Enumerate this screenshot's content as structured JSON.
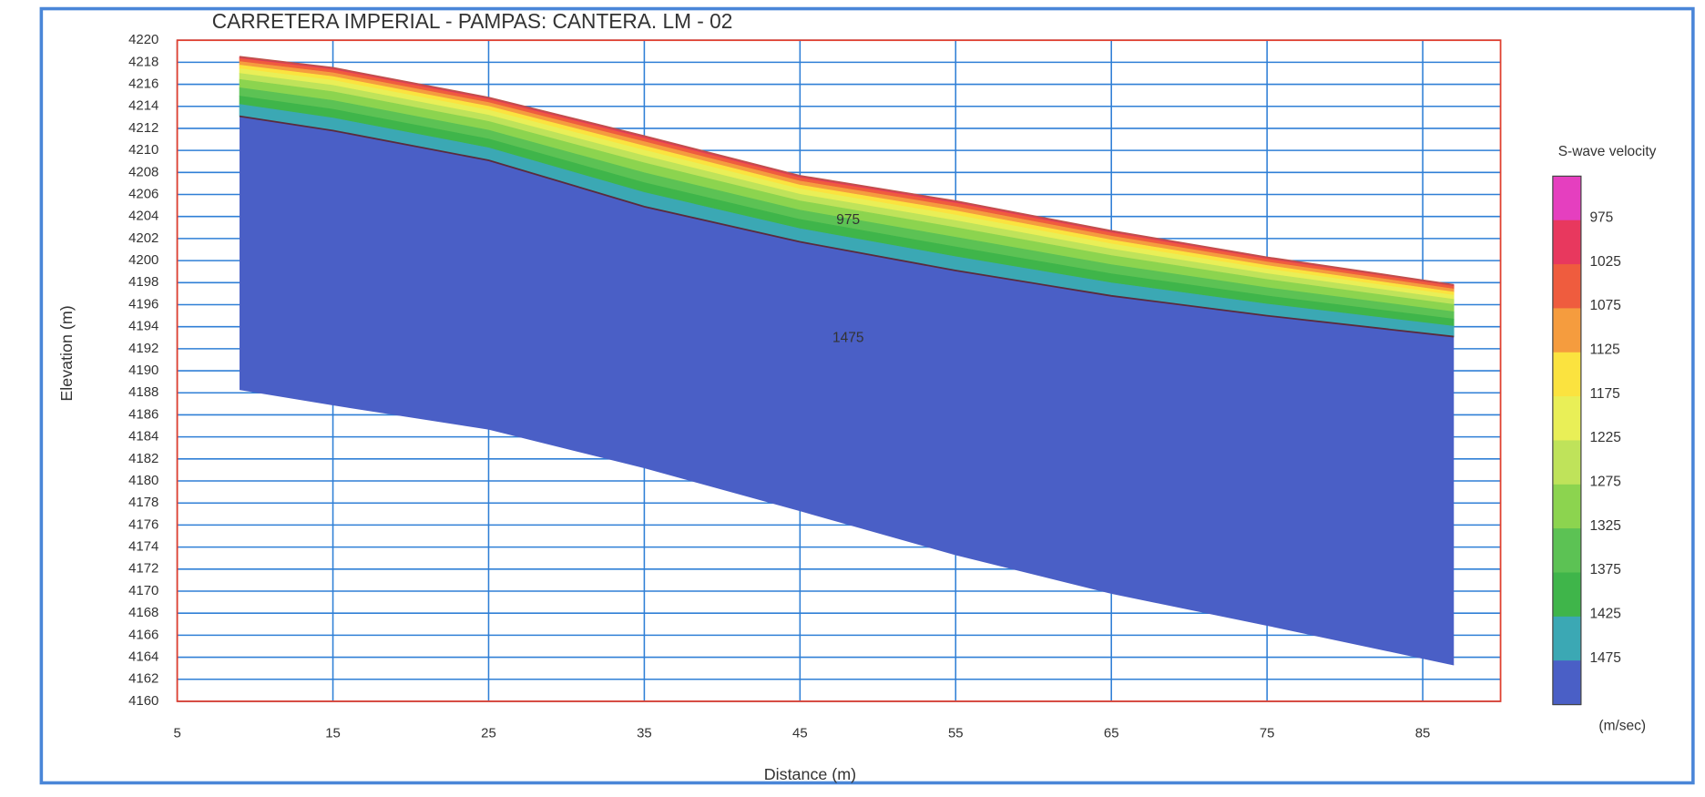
{
  "chart_data": {
    "type": "profile",
    "title": "CARRETERA IMPERIAL - PAMPAS: CANTERA. LM - 02",
    "xlabel": "Distance (m)",
    "ylabel": "Elevation (m)",
    "xlim": [
      5,
      90
    ],
    "ylim": [
      4160,
      4220
    ],
    "xticks": [
      5,
      15,
      25,
      35,
      45,
      55,
      65,
      75,
      85
    ],
    "yticks": [
      4160,
      4162,
      4164,
      4166,
      4168,
      4170,
      4172,
      4174,
      4176,
      4178,
      4180,
      4182,
      4184,
      4186,
      4188,
      4190,
      4192,
      4194,
      4196,
      4198,
      4200,
      4202,
      4204,
      4206,
      4208,
      4210,
      4212,
      4214,
      4216,
      4218,
      4220
    ],
    "grid": true,
    "x": [
      9,
      15,
      25,
      35,
      45,
      55,
      65,
      75,
      87
    ],
    "series": [
      {
        "color": "#c0504a",
        "values": [
          4218.5,
          4217.5,
          4214.8,
          4211.3,
          4207.7,
          4205.4,
          4202.7,
          4200.3,
          4197.8
        ]
      },
      {
        "color": "#5a2a3c",
        "values": [
          4213.1,
          4211.8,
          4209.1,
          4204.9,
          4201.7,
          4199.1,
          4196.8,
          4195.0,
          4193.1
        ]
      },
      {
        "color": "#4a5fc6",
        "values": [
          4188.3,
          4186.9,
          4184.7,
          4181.2,
          4177.3,
          4173.3,
          4169.8,
          4166.9,
          4163.3
        ]
      }
    ],
    "annotations": [
      "975",
      "1475"
    ],
    "colorbar": {
      "title": "S-wave velocity",
      "unit": "(m/sec)",
      "ticks": [
        975,
        1025,
        1075,
        1125,
        1175,
        1225,
        1275,
        1325,
        1375,
        1425,
        1475
      ],
      "colors": [
        "#e53fbf",
        "#e8385e",
        "#ef5c3e",
        "#f59c3e",
        "#fbe33f",
        "#e9ef57",
        "#bfe35a",
        "#8cd44f",
        "#5cc254",
        "#3fb54a",
        "#3ba8b4",
        "#4a5fc6"
      ]
    }
  }
}
